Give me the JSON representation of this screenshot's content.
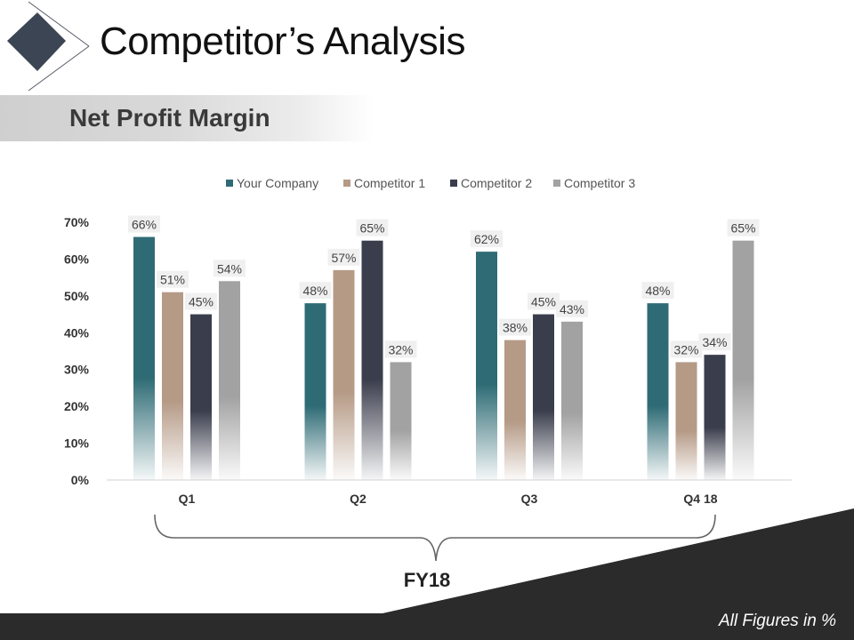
{
  "title": "Competitor’s Analysis",
  "subtitle": "Net Profit Margin",
  "footnote": "All Figures in %",
  "colors": {
    "your_company": "#2e6b75",
    "competitor_1": "#b59a86",
    "competitor_2": "#3a3d4c",
    "competitor_3": "#a2a2a2",
    "dark": "#2b2b2b"
  },
  "chart_data": {
    "type": "bar",
    "categories": [
      "Q1",
      "Q2",
      "Q3",
      "Q4 18"
    ],
    "series": [
      {
        "name": "Your Company",
        "values": [
          66,
          48,
          62,
          48
        ],
        "labels": [
          "66%",
          "48%",
          "62%",
          "48%"
        ]
      },
      {
        "name": "Competitor 1",
        "values": [
          51,
          57,
          38,
          32
        ],
        "labels": [
          "51%",
          "57%",
          "38%",
          "32%"
        ]
      },
      {
        "name": "Competitor 2",
        "values": [
          45,
          65,
          45,
          34
        ],
        "labels": [
          "45%",
          "65%",
          "45%",
          "34%"
        ]
      },
      {
        "name": "Competitor 3",
        "values": [
          54,
          32,
          43,
          65
        ],
        "labels": [
          "54%",
          "32%",
          "43%",
          "65%"
        ]
      }
    ],
    "yticks": [
      "0%",
      "10%",
      "20%",
      "30%",
      "40%",
      "50%",
      "60%",
      "70%"
    ],
    "ylim": [
      0,
      70
    ],
    "legend": "top",
    "grid": false,
    "group_label": "FY18"
  }
}
